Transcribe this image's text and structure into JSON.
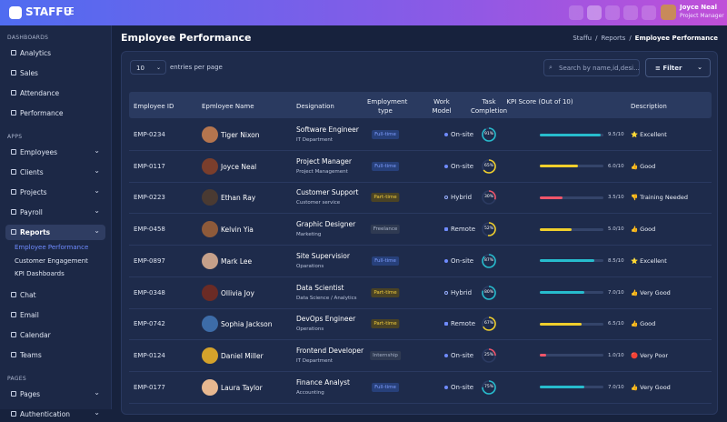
{
  "header": {
    "logo": "STAFFU",
    "user_name": "Joyce Neal",
    "user_role": "Project Manager"
  },
  "sidebar": {
    "sections": [
      {
        "title": "DASHBOARDS",
        "items": [
          {
            "label": "Analytics"
          },
          {
            "label": "Sales"
          },
          {
            "label": "Attendance"
          },
          {
            "label": "Performance"
          }
        ]
      },
      {
        "title": "APPS",
        "items": [
          {
            "label": "Employees",
            "has_submenu": true
          },
          {
            "label": "Clients",
            "has_submenu": true
          },
          {
            "label": "Projects",
            "has_submenu": true
          },
          {
            "label": "Payroll",
            "has_submenu": true
          },
          {
            "label": "Reports",
            "has_submenu": true,
            "active": true,
            "children": [
              {
                "label": "Employee Performance",
                "active": true
              },
              {
                "label": "Customer Engagement"
              },
              {
                "label": "KPI Dashboards"
              }
            ]
          },
          {
            "label": "Chat"
          },
          {
            "label": "Email"
          },
          {
            "label": "Calendar"
          },
          {
            "label": "Teams"
          }
        ]
      },
      {
        "title": "PAGES",
        "items": [
          {
            "label": "Pages",
            "has_submenu": true
          },
          {
            "label": "Authentication",
            "has_submenu": true
          }
        ]
      }
    ]
  },
  "page": {
    "title": "Employee Performance",
    "breadcrumb": [
      "Staffu",
      "Reports",
      "Employee Performance"
    ]
  },
  "controls": {
    "page_size": "10",
    "page_size_label": "entries per page",
    "search_placeholder": "Search by name,id,desi...",
    "filter": "Filter"
  },
  "table": {
    "columns": [
      "Employee ID",
      "Epmloyee Name",
      "Designation",
      "Employment type",
      "Work Model",
      "Task Completion",
      "KPI Score (Out of 10)",
      "Description"
    ],
    "rows": [
      {
        "id": "EMP-0234",
        "name": "Tiger Nixon",
        "designation": "Software Engineer",
        "department": "IT Department",
        "employment": "Full-time",
        "work_model": "On-site",
        "task_completion": {
          "value": 91,
          "label": "91%"
        },
        "kpi": {
          "value": 9.5,
          "label": "9.5/10"
        },
        "description": "⭐ Excellent"
      },
      {
        "id": "EMP-0117",
        "name": "Joyce Neal",
        "designation": "Project Manager",
        "department": "Project Management",
        "employment": "Full-time",
        "work_model": "On-site",
        "task_completion": {
          "value": 65,
          "label": "65%"
        },
        "kpi": {
          "value": 6.0,
          "label": "6.0/10"
        },
        "description": "👍 Good"
      },
      {
        "id": "EMP-0223",
        "name": "Ethan Ray",
        "designation": "Customer Support",
        "department": "Customer service",
        "employment": "Part-time",
        "work_model": "Hybrid",
        "task_completion": {
          "value": 30,
          "label": "30%"
        },
        "kpi": {
          "value": 3.5,
          "label": "3.5/10"
        },
        "description": "👎 Training Needed"
      },
      {
        "id": "EMP-0458",
        "name": "Kelvin Yia",
        "designation": "Graphic Designer",
        "department": "Marketing",
        "employment": "Freelance",
        "work_model": "Remote",
        "task_completion": {
          "value": 52,
          "label": "52%"
        },
        "kpi": {
          "value": 5.0,
          "label": "5.0/10"
        },
        "description": "👍 Good"
      },
      {
        "id": "EMP-0897",
        "name": "Mark Lee",
        "designation": "Site Supervisior",
        "department": "Oparations",
        "employment": "Full-time",
        "work_model": "On-site",
        "task_completion": {
          "value": 87,
          "label": "87%"
        },
        "kpi": {
          "value": 8.5,
          "label": "8.5/10"
        },
        "description": "⭐ Excellent"
      },
      {
        "id": "EMP-0348",
        "name": "Ollivia Joy",
        "designation": "Data Scientist",
        "department": "Data Science / Analytics",
        "employment": "Part-time",
        "work_model": "Hybrid",
        "task_completion": {
          "value": 80,
          "label": "80%"
        },
        "kpi": {
          "value": 7.0,
          "label": "7.0/10"
        },
        "description": "👍 Very Good"
      },
      {
        "id": "EMP-0742",
        "name": "Sophia Jackson",
        "designation": "DevOps Engineer",
        "department": "Operations",
        "employment": "Part-time",
        "work_model": "Remote",
        "task_completion": {
          "value": 67,
          "label": "67%"
        },
        "kpi": {
          "value": 6.5,
          "label": "6.5/10"
        },
        "description": "👍 Good"
      },
      {
        "id": "EMP-0124",
        "name": "Daniel Miller",
        "designation": "Frontend Developer",
        "department": "IT Department",
        "employment": "Internship",
        "work_model": "On-site",
        "task_completion": {
          "value": 25,
          "label": "25%"
        },
        "kpi": {
          "value": 1.0,
          "label": "1.0/10"
        },
        "description": "🔴 Very Poor"
      },
      {
        "id": "EMP-0177",
        "name": "Laura Taylor",
        "designation": "Finance Analyst",
        "department": "Accounting",
        "employment": "Full-time",
        "work_model": "On-site",
        "task_completion": {
          "value": 75,
          "label": "75%"
        },
        "kpi": {
          "value": 7.0,
          "label": "7.0/10"
        },
        "description": "👍 Very Good"
      }
    ]
  }
}
